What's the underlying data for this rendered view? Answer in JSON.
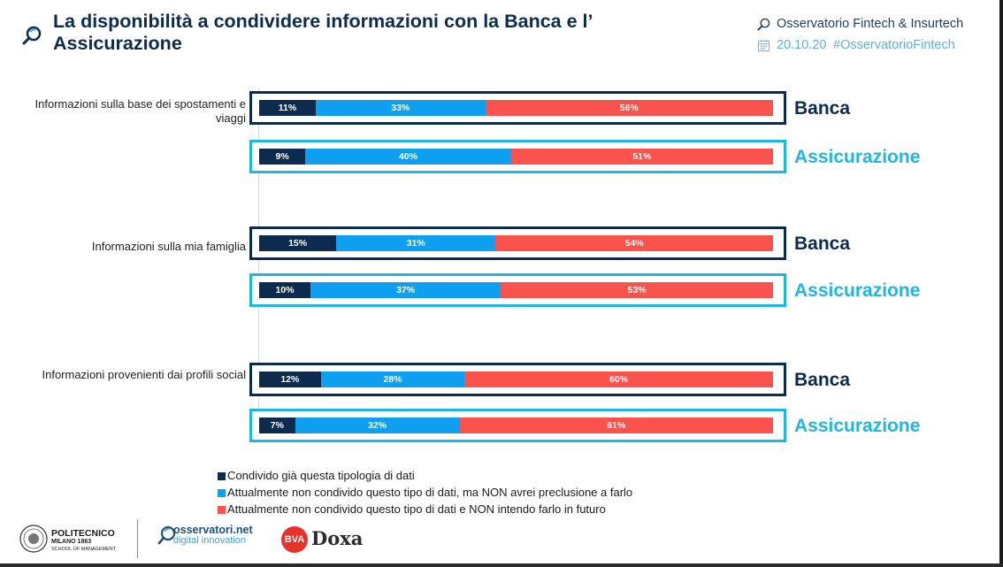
{
  "header": {
    "title": "La disponibilità a condividere informazioni con la Banca e l’ Assicurazione",
    "brand": "Osservatorio Fintech & Insurtech",
    "date": "20.10.20",
    "hashtag": "#OsservatorioFintech"
  },
  "colors": {
    "navy": "#0d2b4e",
    "blue": "#0f9ff0",
    "red": "#fa524d",
    "cyan": "#22b5e2"
  },
  "chart_data": {
    "type": "bar",
    "orientation": "horizontal",
    "stacked": true,
    "percent_stacked": true,
    "categories": [
      "Informazioni sulla base dei spostamenti e viaggi",
      "Informazioni sulla mia famiglia",
      "Informazioni provenienti dai profili social"
    ],
    "rows": [
      {
        "category": 0,
        "label": "Banca",
        "values": [
          11,
          33,
          56
        ],
        "value_labels": [
          "11%",
          "33%",
          "56%"
        ]
      },
      {
        "category": 0,
        "label": "Assicurazione",
        "values": [
          9,
          40,
          51
        ],
        "value_labels": [
          "9%",
          "40%",
          "51%"
        ]
      },
      {
        "category": 1,
        "label": "Banca",
        "values": [
          15,
          31,
          54
        ],
        "value_labels": [
          "15%",
          "31%",
          "54%"
        ]
      },
      {
        "category": 1,
        "label": "Assicurazione",
        "values": [
          10,
          37,
          53
        ],
        "value_labels": [
          "10%",
          "37%",
          "53%"
        ]
      },
      {
        "category": 2,
        "label": "Banca",
        "values": [
          12,
          28,
          60
        ],
        "value_labels": [
          "12%",
          "28%",
          "60%"
        ]
      },
      {
        "category": 2,
        "label": "Assicurazione",
        "values": [
          7,
          32,
          61
        ],
        "value_labels": [
          "7%",
          "32%",
          "61%"
        ]
      }
    ],
    "series": [
      {
        "name": "Condivido già questa tipologia di dati",
        "color": "#0d2b4e"
      },
      {
        "name": "Attualmente non condivido questo tipo di dati, ma NON avrei preclusione a farlo",
        "color": "#0f9ff0"
      },
      {
        "name": "Attualmente non condivido questo tipo di dati e NON intendo farlo in futuro",
        "color": "#fa524d"
      }
    ],
    "legend_position": "bottom-left",
    "grid": false
  },
  "footer": {
    "polimi_name": "POLITECNICO",
    "polimi_sub": "MILANO 1863",
    "polimi_school": "SCHOOL OF MANAGEMENT",
    "oss_name": "osservatori.net",
    "oss_sub": "digital innovation",
    "bva": "BVA",
    "doxa": "Doxa"
  },
  "icons": {
    "title": "magnifier-icon",
    "brand": "magnifier-icon",
    "date": "calendar-icon"
  }
}
